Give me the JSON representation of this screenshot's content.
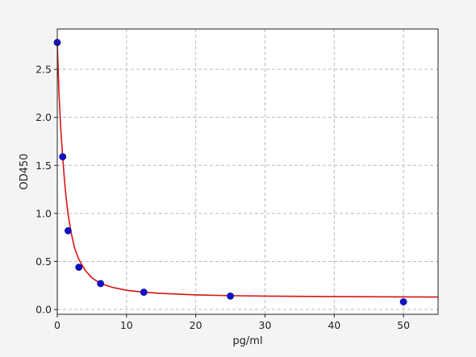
{
  "chart_data": {
    "type": "scatter",
    "title": "",
    "xlabel": "pg/ml",
    "ylabel": "OD450",
    "xlim": [
      0,
      55
    ],
    "ylim": [
      -0.05,
      2.92
    ],
    "xticks": [
      "0",
      "10",
      "20",
      "30",
      "40",
      "50"
    ],
    "yticks": [
      "0.0",
      "0.5",
      "1.0",
      "1.5",
      "2.0",
      "2.5"
    ],
    "grid": true,
    "points": {
      "x": [
        0,
        0.78,
        1.56,
        3.12,
        6.25,
        12.5,
        25,
        50
      ],
      "y": [
        2.78,
        1.59,
        0.82,
        0.44,
        0.27,
        0.18,
        0.14,
        0.08
      ]
    },
    "fit_curve": {
      "x": [
        0,
        0.25,
        0.5,
        0.78,
        1.0,
        1.25,
        1.56,
        2.0,
        2.5,
        3.12,
        4.0,
        5.0,
        6.25,
        8.0,
        10.0,
        12.5,
        15.0,
        20.0,
        25.0,
        30.0,
        40.0,
        50.0,
        55.0
      ],
      "y": [
        2.78,
        2.25,
        1.88,
        1.59,
        1.38,
        1.18,
        0.99,
        0.8,
        0.64,
        0.52,
        0.41,
        0.33,
        0.27,
        0.23,
        0.2,
        0.18,
        0.168,
        0.152,
        0.144,
        0.139,
        0.134,
        0.131,
        0.13
      ]
    },
    "colors": {
      "points": "#1010c8",
      "point_edge": "#0a0a9a",
      "fit": "#d41515",
      "grid": "#b8b8b8",
      "plot_bg": "#ffffff",
      "page_bg": "#f4f4f4"
    }
  }
}
